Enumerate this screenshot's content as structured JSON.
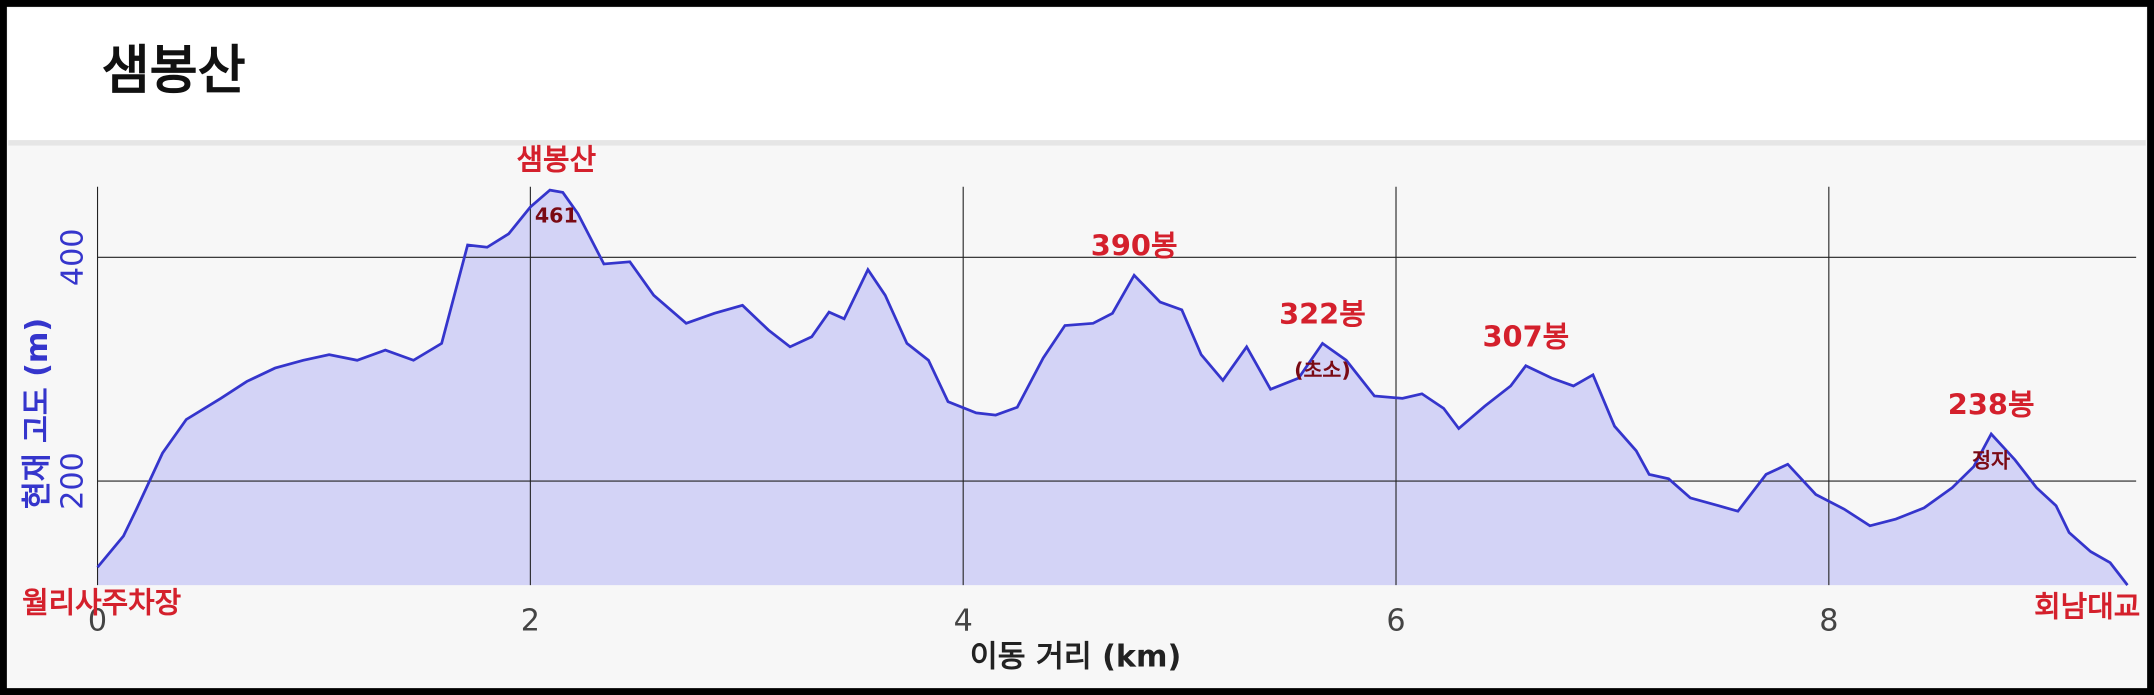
{
  "chart_data": {
    "type": "area",
    "title": "샘봉산",
    "xlabel": "이동 거리 (km)",
    "ylabel": "현재 고도 (m)",
    "x": [
      0,
      0.12,
      0.18,
      0.3,
      0.41,
      0.57,
      0.69,
      0.82,
      0.95,
      1.07,
      1.2,
      1.33,
      1.46,
      1.59,
      1.71,
      1.8,
      1.9,
      2.0,
      2.09,
      2.15,
      2.22,
      2.34,
      2.46,
      2.57,
      2.72,
      2.85,
      2.98,
      3.1,
      3.2,
      3.3,
      3.38,
      3.45,
      3.56,
      3.64,
      3.74,
      3.84,
      3.93,
      4.06,
      4.15,
      4.25,
      4.37,
      4.47,
      4.6,
      4.69,
      4.79,
      4.91,
      5.01,
      5.1,
      5.2,
      5.31,
      5.42,
      5.55,
      5.66,
      5.77,
      5.9,
      6.03,
      6.12,
      6.22,
      6.29,
      6.41,
      6.53,
      6.6,
      6.72,
      6.82,
      6.91,
      7.01,
      7.11,
      7.17,
      7.26,
      7.36,
      7.49,
      7.58,
      7.71,
      7.81,
      7.94,
      8.07,
      8.19,
      8.31,
      8.44,
      8.57,
      8.67,
      8.75,
      8.86,
      8.96,
      9.05,
      9.11,
      9.21,
      9.3,
      9.38
    ],
    "values": [
      123,
      151,
      175,
      225,
      255,
      274,
      289,
      301,
      308,
      313,
      308,
      317,
      308,
      323,
      411,
      409,
      421,
      445,
      460,
      458,
      439,
      394,
      396,
      366,
      341,
      350,
      357,
      335,
      320,
      329,
      351,
      345,
      389,
      366,
      323,
      308,
      271,
      261,
      259,
      266,
      310,
      339,
      341,
      350,
      384,
      360,
      353,
      313,
      290,
      320,
      282,
      292,
      323,
      308,
      276,
      274,
      278,
      265,
      247,
      267,
      285,
      303,
      292,
      285,
      295,
      249,
      227,
      206,
      202,
      185,
      178,
      173,
      206,
      215,
      188,
      175,
      160,
      166,
      176,
      194,
      213,
      242,
      219,
      194,
      178,
      154,
      137,
      127,
      107
    ],
    "line_color": "#3535cc",
    "fill_color": "#d3d3f6",
    "xlim": [
      0,
      9.42
    ],
    "ylim": [
      107,
      463
    ],
    "xticks": [
      0,
      2,
      4,
      6,
      8
    ],
    "yticks": [
      200,
      400
    ],
    "grid": true,
    "annotations": [
      {
        "x": 2.12,
        "y": 461,
        "label": "샘봉산",
        "note": "461"
      },
      {
        "x": 4.79,
        "y": 384,
        "label": "390봉"
      },
      {
        "x": 5.66,
        "y": 323,
        "label": "322봉",
        "note": "(초소)"
      },
      {
        "x": 6.6,
        "y": 303,
        "label": "307봉"
      },
      {
        "x": 8.75,
        "y": 242,
        "label": "238봉",
        "note": "정자"
      }
    ],
    "start_label": "월리사주차장",
    "end_label": "회남대교"
  }
}
